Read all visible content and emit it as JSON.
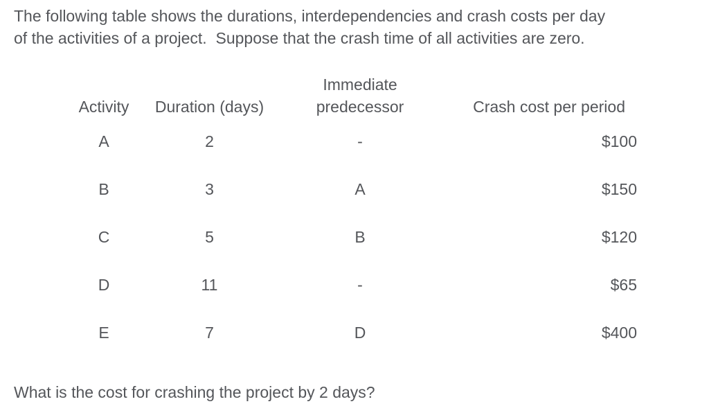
{
  "colors": {
    "text": "#54565a",
    "background": "#ffffff"
  },
  "intro": {
    "line1": "The following table shows the durations, interdependencies and crash costs per day",
    "line2": "of the activities of a project.  Suppose that the crash time of all activities are zero."
  },
  "table": {
    "headers": {
      "activity": "Activity",
      "duration": "Duration (days)",
      "predecessor_line1": "Immediate",
      "predecessor_line2": "predecessor",
      "crash_cost": "Crash cost per period"
    },
    "rows": [
      {
        "activity": "A",
        "duration": "2",
        "predecessor": "-",
        "crash_cost": "$100"
      },
      {
        "activity": "B",
        "duration": "3",
        "predecessor": "A",
        "crash_cost": "$150"
      },
      {
        "activity": "C",
        "duration": "5",
        "predecessor": "B",
        "crash_cost": "$120"
      },
      {
        "activity": "D",
        "duration": "11",
        "predecessor": "-",
        "crash_cost": "$65"
      },
      {
        "activity": "E",
        "duration": "7",
        "predecessor": "D",
        "crash_cost": "$400"
      }
    ]
  },
  "question": "What is the cost for crashing the project by 2 days?"
}
